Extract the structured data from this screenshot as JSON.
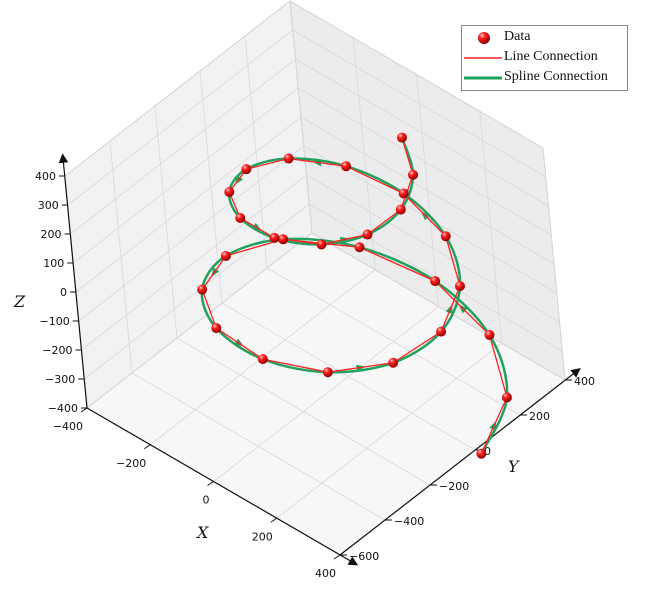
{
  "chart_data": {
    "type": "scatter3d",
    "title": "",
    "xlabel": "X",
    "ylabel": "Y",
    "zlabel": "Z",
    "xlim": [
      -400,
      400
    ],
    "ylim": [
      -600,
      400
    ],
    "zlim": [
      -400,
      400
    ],
    "xticks": [
      "−400",
      "−200",
      "0",
      "200",
      "400"
    ],
    "xtick_values": [
      -400,
      -200,
      0,
      200,
      400
    ],
    "yticks": [
      "−600",
      "−400",
      "−200",
      "0",
      "200",
      "400"
    ],
    "ytick_values": [
      -600,
      -400,
      -200,
      0,
      200,
      400
    ],
    "zticks": [
      "400",
      "300",
      "200",
      "100",
      "0",
      "−100",
      "−200",
      "−300",
      "−400"
    ],
    "ztick_values": [
      400,
      300,
      200,
      100,
      0,
      -100,
      -200,
      -300,
      -400
    ],
    "grid": true,
    "legend_position": "top-right",
    "colors": {
      "data": "#e00000",
      "line": "#ff2020",
      "spline": "#22a060",
      "wall": "#ececec",
      "floor": "#f7f7f7",
      "grid": "#d8d8d8"
    },
    "series": [
      {
        "name": "Data",
        "type": "scatter",
        "marker": "sphere"
      },
      {
        "name": "Line Connection",
        "type": "line"
      },
      {
        "name": "Spline Connection",
        "type": "spline",
        "arrows": true
      }
    ],
    "points": {
      "x": [
        420,
        357,
        202,
        0,
        -194,
        -329,
        -372,
        -315,
        -178,
        0,
        170,
        288,
        324,
        274,
        154,
        0,
        -146,
        -246,
        -276,
        -232,
        -130,
        0,
        122,
        204,
        228,
        191,
        106
      ],
      "y": [
        0,
        206,
        350,
        396,
        336,
        190,
        0,
        -182,
        -308,
        -348,
        -294,
        -166,
        0,
        158,
        267,
        300,
        253,
        142,
        0,
        -134,
        -225,
        -252,
        -211,
        -118,
        0,
        110,
        184
      ],
      "z": [
        -400,
        -370,
        -340,
        -310,
        -280,
        -250,
        -220,
        -190,
        -160,
        -130,
        -100,
        -70,
        -40,
        -10,
        20,
        50,
        80,
        110,
        140,
        170,
        200,
        230,
        260,
        290,
        320,
        350,
        380
      ]
    }
  },
  "legend": {
    "items": [
      {
        "label": "Data"
      },
      {
        "label": "Line Connection"
      },
      {
        "label": "Spline Connection"
      }
    ]
  }
}
